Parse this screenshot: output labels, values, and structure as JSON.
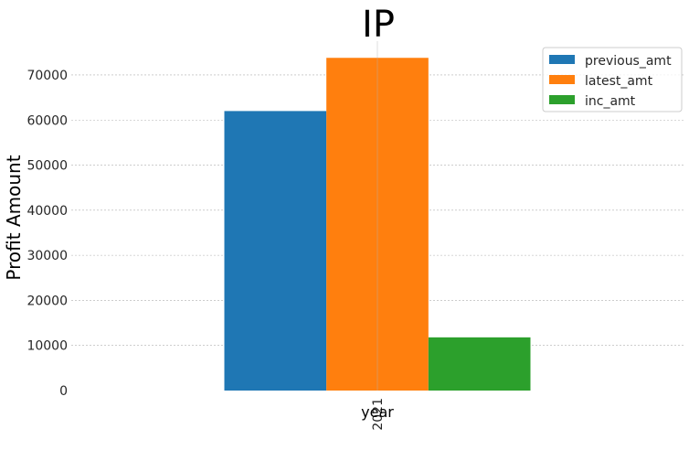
{
  "chart_data": {
    "type": "bar",
    "title": "IP",
    "xlabel": "year",
    "ylabel": "Profit Amount",
    "categories": [
      "2021"
    ],
    "series": [
      {
        "name": "previous_amt",
        "values": [
          62000
        ],
        "color": "#1f77b4"
      },
      {
        "name": "latest_amt",
        "values": [
          73800
        ],
        "color": "#ff7f0e"
      },
      {
        "name": "inc_amt",
        "values": [
          11800
        ],
        "color": "#2ca02c"
      }
    ],
    "ylim": [
      0,
      77500
    ],
    "yticks": [
      "0",
      "10000",
      "20000",
      "30000",
      "40000",
      "50000",
      "60000",
      "70000"
    ],
    "grid": true,
    "legend": "top-right"
  }
}
